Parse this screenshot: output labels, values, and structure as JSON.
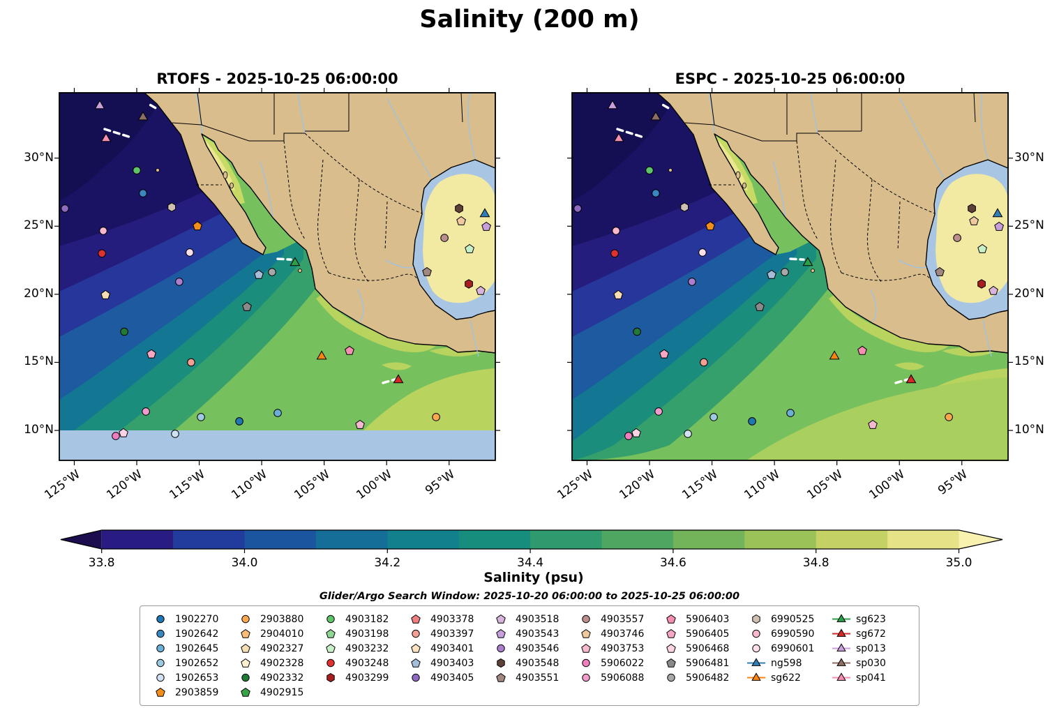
{
  "title": "Salinity (200 m)",
  "panels": [
    {
      "title": "RTOFS - 2025-10-25 06:00:00"
    },
    {
      "title": "ESPC - 2025-10-25 06:00:00"
    }
  ],
  "axes": {
    "extent": {
      "lon": [
        -126.2,
        -91.3
      ],
      "lat": [
        7.8,
        34.8
      ]
    },
    "lon_ticks": [
      {
        "value": -125,
        "label": "125°W"
      },
      {
        "value": -120,
        "label": "120°W"
      },
      {
        "value": -115,
        "label": "115°W"
      },
      {
        "value": -110,
        "label": "110°W"
      },
      {
        "value": -105,
        "label": "105°W"
      },
      {
        "value": -100,
        "label": "100°W"
      },
      {
        "value": -95,
        "label": "95°W"
      }
    ],
    "lat_ticks": [
      {
        "value": 30,
        "label": "30°N"
      },
      {
        "value": 25,
        "label": "25°N"
      },
      {
        "value": 20,
        "label": "20°N"
      },
      {
        "value": 15,
        "label": "15°N"
      },
      {
        "value": 10,
        "label": "10°N"
      }
    ]
  },
  "colorbar": {
    "label": "Salinity (psu)",
    "vmin": 33.8,
    "vmax": 35.0,
    "ticks": [
      {
        "value": 33.8,
        "label": "33.8"
      },
      {
        "value": 34.0,
        "label": "34.0"
      },
      {
        "value": 34.2,
        "label": "34.2"
      },
      {
        "value": 34.4,
        "label": "34.4"
      },
      {
        "value": 34.6,
        "label": "34.6"
      },
      {
        "value": 34.8,
        "label": "34.8"
      },
      {
        "value": 35.0,
        "label": "35.0"
      }
    ],
    "band_colors": [
      "#281b82",
      "#223c9e",
      "#1c559f",
      "#156e98",
      "#12808d",
      "#178d7e",
      "#2f9a6e",
      "#4fa661",
      "#73b35a",
      "#9ac259",
      "#c3d165",
      "#e6e288"
    ],
    "under_color": "#1c0e4e",
    "over_color": "#f8f1b0"
  },
  "search_window": "Glider/Argo Search Window: 2025-10-20 06:00:00 to 2025-10-25 06:00:00",
  "legend": {
    "columns": [
      [
        {
          "id": "1902270",
          "shape": "circle",
          "color": "#1f77b4"
        },
        {
          "id": "1902642",
          "shape": "circle",
          "color": "#3a87c2"
        },
        {
          "id": "1902645",
          "shape": "circle",
          "color": "#6baed6"
        },
        {
          "id": "1902652",
          "shape": "circle",
          "color": "#9ecae1"
        },
        {
          "id": "1902653",
          "shape": "circle",
          "color": "#cfe1f2"
        },
        {
          "id": "2903859",
          "shape": "pentagon",
          "color": "#f28e1c"
        }
      ],
      [
        {
          "id": "2903880",
          "shape": "circle",
          "color": "#ffa94d"
        },
        {
          "id": "2904010",
          "shape": "pentagon",
          "color": "#ffbb78"
        },
        {
          "id": "4902327",
          "shape": "pentagon",
          "color": "#f5deb3"
        },
        {
          "id": "4902328",
          "shape": "pentagon",
          "color": "#fdf0d5"
        },
        {
          "id": "4902332",
          "shape": "circle",
          "color": "#1e7a34"
        },
        {
          "id": "4902915",
          "shape": "pentagon",
          "color": "#37a547"
        }
      ],
      [
        {
          "id": "4903182",
          "shape": "circle",
          "color": "#5ec46a"
        },
        {
          "id": "4903198",
          "shape": "pentagon",
          "color": "#8fd694"
        },
        {
          "id": "4903232",
          "shape": "pentagon",
          "color": "#c8f0c8"
        },
        {
          "id": "4903248",
          "shape": "circle",
          "color": "#e03131"
        },
        {
          "id": "4903299",
          "shape": "hexagon",
          "color": "#a61e1e"
        }
      ],
      [
        {
          "id": "4903378",
          "shape": "pentagon",
          "color": "#f08080"
        },
        {
          "id": "4903397",
          "shape": "circle",
          "color": "#f49f94"
        },
        {
          "id": "4903401",
          "shape": "pentagon",
          "color": "#fbe2c0"
        },
        {
          "id": "4903403",
          "shape": "pentagon",
          "color": "#a6bdda"
        },
        {
          "id": "4903405",
          "shape": "circle",
          "color": "#8e6bc1"
        }
      ],
      [
        {
          "id": "4903518",
          "shape": "pentagon",
          "color": "#d8b4dc"
        },
        {
          "id": "4903543",
          "shape": "pentagon",
          "color": "#c79fdc"
        },
        {
          "id": "4903546",
          "shape": "circle",
          "color": "#ab7fcd"
        },
        {
          "id": "4903548",
          "shape": "hexagon",
          "color": "#5d4037"
        },
        {
          "id": "4903551",
          "shape": "pentagon",
          "color": "#a1887f"
        }
      ],
      [
        {
          "id": "4903557",
          "shape": "circle",
          "color": "#bc8f8f"
        },
        {
          "id": "4903746",
          "shape": "pentagon",
          "color": "#eec89e"
        },
        {
          "id": "4903753",
          "shape": "pentagon",
          "color": "#f4b8cf"
        },
        {
          "id": "5906022",
          "shape": "circle",
          "color": "#ef7fbe"
        },
        {
          "id": "5906088",
          "shape": "circle",
          "color": "#f29ccb"
        }
      ],
      [
        {
          "id": "5906403",
          "shape": "pentagon",
          "color": "#f48fb1"
        },
        {
          "id": "5906405",
          "shape": "pentagon",
          "color": "#f7a6c5"
        },
        {
          "id": "5906468",
          "shape": "pentagon",
          "color": "#fbd3e3"
        },
        {
          "id": "5906481",
          "shape": "pentagon",
          "color": "#8a8a8a"
        },
        {
          "id": "5906482",
          "shape": "circle",
          "color": "#a8a8a8"
        }
      ],
      [
        {
          "id": "6990525",
          "shape": "hexagon",
          "color": "#cfc0b0"
        },
        {
          "id": "6990590",
          "shape": "circle",
          "color": "#f9b8cd"
        },
        {
          "id": "6990601",
          "shape": "circle",
          "color": "#fde0ea"
        },
        {
          "id": "ng598",
          "shape": "glider",
          "color": "#2f7fb5"
        },
        {
          "id": "sg622",
          "shape": "glider",
          "color": "#f98410"
        }
      ],
      [
        {
          "id": "sg623",
          "shape": "glider",
          "color": "#2c9f48"
        },
        {
          "id": "sg672",
          "shape": "glider",
          "color": "#d62828"
        },
        {
          "id": "sp013",
          "shape": "glider",
          "color": "#c9a0dc"
        },
        {
          "id": "sp030",
          "shape": "glider",
          "color": "#8d6e63"
        },
        {
          "id": "sp041",
          "shape": "glider",
          "color": "#f48fb1"
        }
      ]
    ]
  },
  "chart_data": {
    "type": "heatmap",
    "variable": "Salinity (psu) at 200 m depth",
    "panels": [
      {
        "model": "RTOFS",
        "valid_time": "2025-10-25 06:00:00",
        "field_summary": "Fresh pool <34.0 psu in NW Pacific corner; salinity increases SE-ward through 34.2-34.6; broad ~34.6-34.7 green region; ~34.8 patches along the southern Mexican coast and SE corner; Gulf of California upper reaches ~34.8-35.0; Gulf of Mexico ~35.0; no data south of 10°N"
      },
      {
        "model": "ESPC",
        "valid_time": "2025-10-25 06:00:00",
        "field_summary": "Similar pattern to RTOFS with fresh NW pool, saltier SE; larger ~34.8 area in the southeast; domain extends south of 10°N"
      }
    ],
    "extent": {
      "lon": [
        -126.2,
        -91.3
      ],
      "lat": [
        7.8,
        34.8
      ]
    },
    "salinity_range_psu": [
      33.8,
      35.0
    ],
    "platform_positions": [
      {
        "id": "sp013",
        "lon": -122.96,
        "lat": 33.83
      },
      {
        "id": "sp030",
        "lon": -119.5,
        "lat": 33.0
      },
      {
        "id": "sp041",
        "lon": -122.46,
        "lat": 31.42
      },
      {
        "id": "4903182",
        "lon": -120.0,
        "lat": 29.1
      },
      {
        "id": "1902642",
        "lon": -119.5,
        "lat": 27.42
      },
      {
        "id": "4903405",
        "lon": -125.75,
        "lat": 26.3
      },
      {
        "id": "6990525",
        "lon": -117.2,
        "lat": 26.4
      },
      {
        "id": "6990590",
        "lon": -122.68,
        "lat": 24.66
      },
      {
        "id": "2903859",
        "lon": -115.14,
        "lat": 25.0
      },
      {
        "id": "4903248",
        "lon": -122.79,
        "lat": 23.0
      },
      {
        "id": "6990601",
        "lon": -115.76,
        "lat": 23.07
      },
      {
        "id": "4902327",
        "lon": -122.5,
        "lat": 19.94
      },
      {
        "id": "4903546",
        "lon": -116.6,
        "lat": 20.92
      },
      {
        "id": "4903403",
        "lon": -110.23,
        "lat": 21.43
      },
      {
        "id": "5906482",
        "lon": -109.17,
        "lat": 21.63
      },
      {
        "id": "sg623",
        "lon": -107.33,
        "lat": 22.3
      },
      {
        "id": "4902332",
        "lon": -121.0,
        "lat": 17.25
      },
      {
        "id": "5906405",
        "lon": -118.83,
        "lat": 15.6
      },
      {
        "id": "4903397",
        "lon": -115.65,
        "lat": 15.0
      },
      {
        "id": "5906481",
        "lon": -111.18,
        "lat": 19.07
      },
      {
        "id": "5906403",
        "lon": -102.97,
        "lat": 15.85
      },
      {
        "id": "sg622",
        "lon": -105.2,
        "lat": 15.43
      },
      {
        "id": "sg672",
        "lon": -99.06,
        "lat": 13.69
      },
      {
        "id": "5906088",
        "lon": -119.27,
        "lat": 11.39
      },
      {
        "id": "1902652",
        "lon": -114.86,
        "lat": 10.98
      },
      {
        "id": "1902270",
        "lon": -111.79,
        "lat": 10.67
      },
      {
        "id": "1902645",
        "lon": -108.72,
        "lat": 11.28
      },
      {
        "id": "4903753",
        "lon": -102.13,
        "lat": 10.41
      },
      {
        "id": "2903880",
        "lon": -96.04,
        "lat": 10.98
      },
      {
        "id": "5906022",
        "lon": -121.68,
        "lat": 9.59
      },
      {
        "id": "5906468",
        "lon": -121.06,
        "lat": 9.8
      },
      {
        "id": "1902653",
        "lon": -116.93,
        "lat": 9.75
      },
      {
        "id": "4903548",
        "lon": -94.2,
        "lat": 26.3
      },
      {
        "id": "4903746",
        "lon": -94.03,
        "lat": 25.37
      },
      {
        "id": "ng598",
        "lon": -92.14,
        "lat": 25.89
      },
      {
        "id": "4903543",
        "lon": -92.02,
        "lat": 24.96
      },
      {
        "id": "4903557",
        "lon": -95.37,
        "lat": 24.14
      },
      {
        "id": "4903232",
        "lon": -93.36,
        "lat": 23.32
      },
      {
        "id": "4903299",
        "lon": -93.42,
        "lat": 20.76
      },
      {
        "id": "4903518",
        "lon": -92.47,
        "lat": 20.25
      },
      {
        "id": "4903551",
        "lon": -96.77,
        "lat": 21.63
      }
    ],
    "glider_tracks": [
      {
        "glider": "sp013",
        "points": [
          [
            -118.9,
            33.9
          ],
          [
            -118.25,
            33.55
          ]
        ]
      },
      {
        "glider": "sp041",
        "points": [
          [
            -122.57,
            32.13
          ],
          [
            -120.45,
            31.52
          ]
        ]
      },
      {
        "glider": "sg623",
        "points": [
          [
            -108.72,
            22.6
          ],
          [
            -107.66,
            22.55
          ]
        ]
      },
      {
        "glider": "sg672",
        "points": [
          [
            -100.29,
            13.49
          ],
          [
            -99.34,
            13.74
          ]
        ]
      }
    ]
  }
}
